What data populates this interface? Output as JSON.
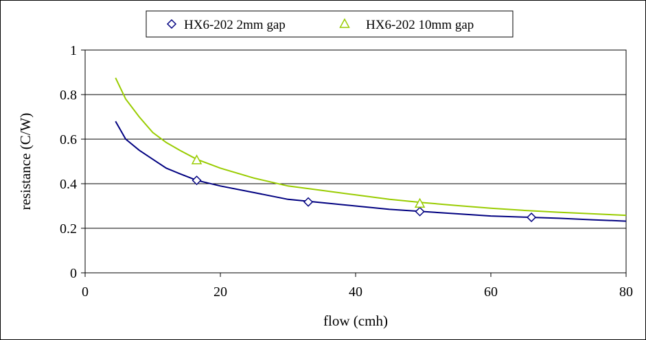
{
  "chart_data": {
    "type": "line",
    "title": "",
    "xlabel": "flow (cmh)",
    "ylabel": "resistance (C/W)",
    "xlim": [
      0,
      80
    ],
    "ylim": [
      0,
      1
    ],
    "x_ticks": [
      "0",
      "20",
      "40",
      "60",
      "80"
    ],
    "y_ticks": [
      "0",
      "0.2",
      "0.4",
      "0.6",
      "0.8",
      "1"
    ],
    "grid": "horizontal",
    "legend_position": "top",
    "series": [
      {
        "name": "HX6-202 2mm gap",
        "color": "#000080",
        "marker": "diamond",
        "curve_x": [
          4.5,
          6,
          8,
          10,
          12,
          14,
          16.5,
          20,
          25,
          30,
          35,
          40,
          45,
          50,
          55,
          60,
          65,
          70,
          75,
          80
        ],
        "curve_y": [
          0.68,
          0.6,
          0.55,
          0.51,
          0.47,
          0.445,
          0.415,
          0.39,
          0.36,
          0.33,
          0.315,
          0.3,
          0.285,
          0.275,
          0.265,
          0.255,
          0.25,
          0.245,
          0.238,
          0.232
        ],
        "points_x": [
          16.5,
          33,
          49.5,
          66
        ],
        "points_y": [
          0.415,
          0.318,
          0.275,
          0.249
        ]
      },
      {
        "name": "HX6-202 10mm gap",
        "color": "#99CC00",
        "marker": "triangle",
        "curve_x": [
          4.5,
          6,
          8,
          10,
          12,
          14,
          16.5,
          20,
          25,
          30,
          35,
          40,
          45,
          50,
          55,
          60,
          65,
          70,
          75,
          80
        ],
        "curve_y": [
          0.875,
          0.78,
          0.7,
          0.63,
          0.585,
          0.55,
          0.51,
          0.47,
          0.425,
          0.39,
          0.37,
          0.35,
          0.33,
          0.315,
          0.302,
          0.29,
          0.28,
          0.272,
          0.265,
          0.258
        ],
        "points_x": [
          16.5,
          49.5
        ],
        "points_y": [
          0.505,
          0.31
        ]
      }
    ]
  }
}
